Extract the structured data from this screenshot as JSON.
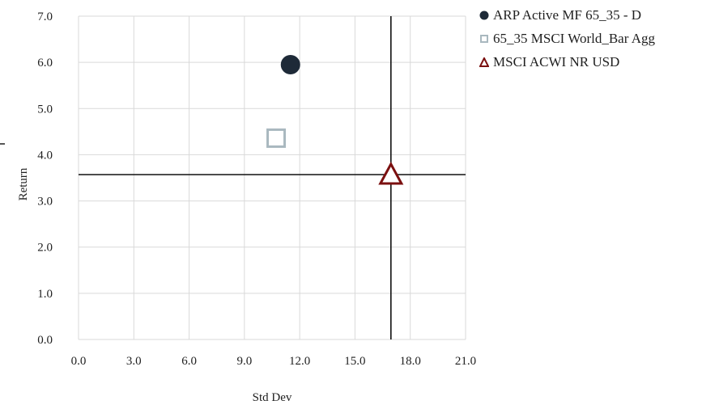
{
  "chart_data": {
    "type": "scatter",
    "xlabel": "Std Dev",
    "ylabel": "Return",
    "xlim": [
      0,
      21
    ],
    "ylim": [
      0,
      7
    ],
    "x_ticks": [
      "0.0",
      "3.0",
      "6.0",
      "9.0",
      "12.0",
      "15.0",
      "18.0",
      "21.0"
    ],
    "y_ticks": [
      "0.0",
      "1.0",
      "2.0",
      "3.0",
      "4.0",
      "5.0",
      "6.0",
      "7.0"
    ],
    "grid": true,
    "legend_position": "right",
    "series": [
      {
        "name": "ARP Active MF 65_35 - D",
        "marker": "circle",
        "x": 11.5,
        "y": 5.95,
        "color": "#1e2a38"
      },
      {
        "name": "65_35 MSCI World_Bar Agg",
        "marker": "square",
        "x": 10.7,
        "y": 4.35,
        "color": "#a9b8bf"
      },
      {
        "name": "MSCI ACWI NR USD",
        "marker": "triangle",
        "x": 16.95,
        "y": 3.57,
        "color": "#7b1010"
      }
    ],
    "reference_lines": {
      "x": 16.95,
      "y": 3.57
    }
  }
}
